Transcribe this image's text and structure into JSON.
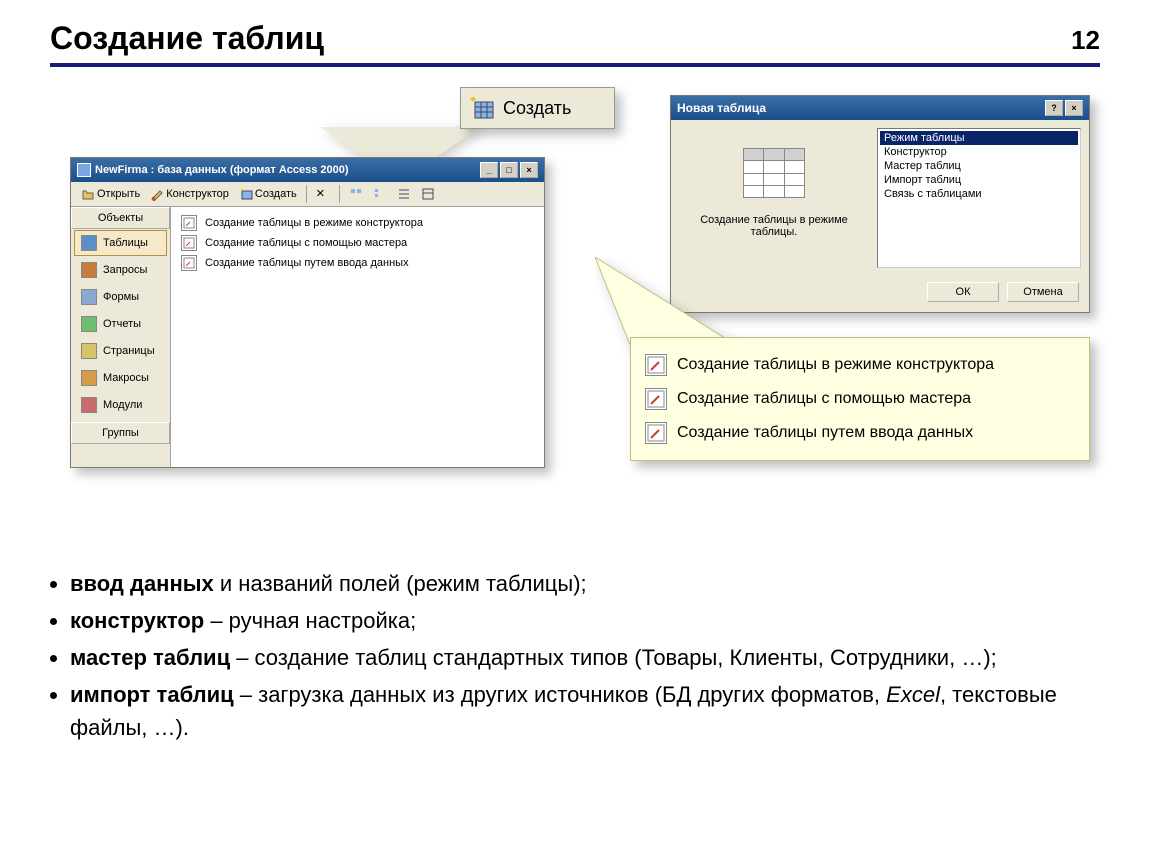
{
  "slide": {
    "title": "Создание таблиц",
    "number": "12"
  },
  "db_window": {
    "title": "NewFirma : база данных (формат Access 2000)",
    "toolbar": {
      "open": "Открыть",
      "design": "Конструктор",
      "create": "Создать"
    },
    "sidebar": {
      "header": "Объекты",
      "footer": "Группы",
      "items": [
        {
          "label": "Таблицы",
          "color": "#5b8fc5"
        },
        {
          "label": "Запросы",
          "color": "#c77d3e"
        },
        {
          "label": "Формы",
          "color": "#8aa8d0"
        },
        {
          "label": "Отчеты",
          "color": "#6fbd6f"
        },
        {
          "label": "Страницы",
          "color": "#d8c36b"
        },
        {
          "label": "Макросы",
          "color": "#d49c4b"
        },
        {
          "label": "Модули",
          "color": "#c96b6b"
        }
      ]
    },
    "list_items": [
      "Создание таблицы в режиме конструктора",
      "Создание таблицы с помощью мастера",
      "Создание таблицы путем ввода данных"
    ]
  },
  "create_button": {
    "label": "Создать"
  },
  "dialog": {
    "title": "Новая таблица",
    "preview_text": "Создание таблицы в режиме таблицы.",
    "list": [
      "Режим таблицы",
      "Конструктор",
      "Мастер таблиц",
      "Импорт таблиц",
      "Связь с таблицами"
    ],
    "ok": "ОК",
    "cancel": "Отмена"
  },
  "yellow_callout": {
    "items": [
      "Создание таблицы в режиме конструктора",
      "Создание таблицы с помощью мастера",
      "Создание таблицы путем ввода данных"
    ]
  },
  "bullets": [
    {
      "bold": "ввод данных",
      "rest": " и названий полей (режим таблицы);"
    },
    {
      "bold": "конструктор",
      "rest": " – ручная настройка;"
    },
    {
      "bold": "мастер таблиц",
      "rest": " – создание таблиц стандартных типов (Товары, Клиенты, Сотрудники, …);"
    },
    {
      "bold": "импорт таблиц",
      "rest": " – загрузка данных из других источников (БД других форматов, <i>Excel</i>, текстовые файлы, …)."
    }
  ],
  "colors": {
    "titlebar_top": "#3b6ea5",
    "titlebar_bottom": "#1a4f8a",
    "window_bg": "#ece9d8",
    "selected_bg": "#0a246a",
    "yellow_callout": "#ffffe1",
    "underline": "#1a1a7a"
  }
}
